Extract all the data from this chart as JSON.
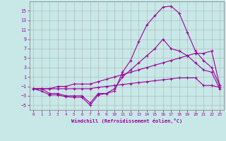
{
  "xlabel": "Windchill (Refroidissement éolien,°C)",
  "background_color": "#c8e8e8",
  "line_color": "#990099",
  "grid_color": "#aaaaaa",
  "hours": [
    0,
    1,
    2,
    3,
    4,
    5,
    6,
    7,
    8,
    9,
    10,
    11,
    12,
    13,
    14,
    15,
    16,
    17,
    18,
    19,
    20,
    21,
    22,
    23
  ],
  "line1": [
    -1.5,
    -2.0,
    -2.8,
    -2.8,
    -3.2,
    -3.3,
    -3.3,
    -5.0,
    -2.8,
    -2.5,
    -2.0,
    2.0,
    4.5,
    8.5,
    12.0,
    14.0,
    15.8,
    16.0,
    14.5,
    10.5,
    6.5,
    4.5,
    3.0,
    -0.8
  ],
  "line2": [
    -1.5,
    -1.5,
    -2.5,
    -2.5,
    -3.0,
    -3.0,
    -3.0,
    -4.5,
    -2.5,
    -2.5,
    -1.5,
    1.0,
    2.5,
    4.0,
    5.5,
    7.0,
    9.0,
    7.0,
    6.5,
    5.5,
    4.0,
    2.5,
    2.0,
    -1.5
  ],
  "line3": [
    -1.5,
    -1.5,
    -1.5,
    -1.0,
    -1.0,
    -0.5,
    -0.5,
    -0.5,
    0.0,
    0.5,
    1.0,
    1.5,
    2.0,
    2.5,
    3.0,
    3.5,
    4.0,
    4.5,
    5.0,
    5.5,
    6.0,
    6.0,
    6.5,
    -0.8
  ],
  "line4": [
    -1.5,
    -1.5,
    -1.5,
    -1.5,
    -1.5,
    -1.5,
    -1.5,
    -1.5,
    -1.2,
    -1.0,
    -0.8,
    -0.6,
    -0.4,
    -0.2,
    0.0,
    0.2,
    0.4,
    0.6,
    0.8,
    0.8,
    0.8,
    -0.8,
    -0.8,
    -1.2
  ],
  "ylim": [
    -6,
    17
  ],
  "xlim": [
    -0.5,
    23.5
  ],
  "yticks": [
    -5,
    -3,
    -1,
    1,
    3,
    5,
    7,
    9,
    11,
    13,
    15
  ],
  "xticks": [
    0,
    1,
    2,
    3,
    4,
    5,
    6,
    7,
    8,
    9,
    10,
    11,
    12,
    13,
    14,
    15,
    16,
    17,
    18,
    19,
    20,
    21,
    22,
    23
  ]
}
